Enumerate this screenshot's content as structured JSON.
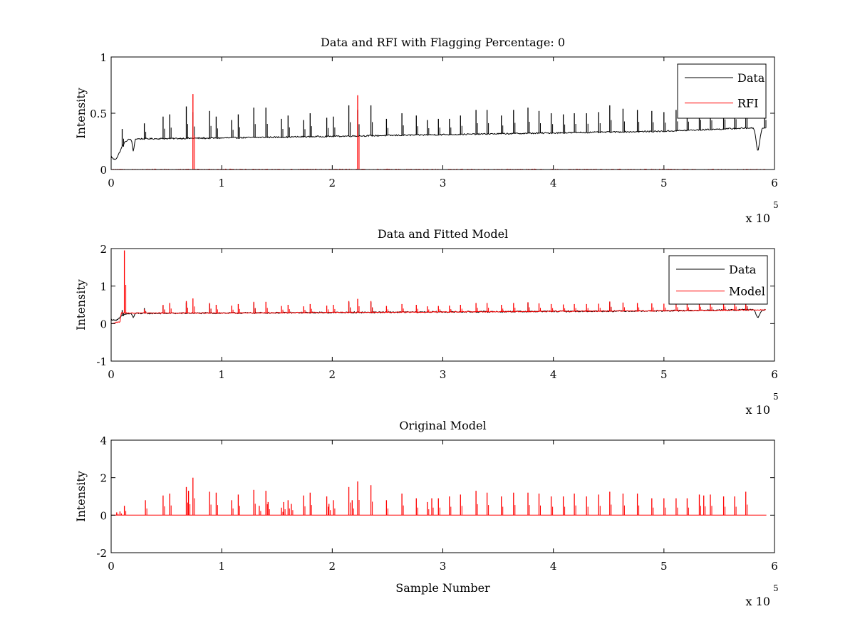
{
  "colors": {
    "data": "#000000",
    "rfi": "#ff0000",
    "background": "#ffffff",
    "axes": "#000000"
  },
  "chart_data": [
    {
      "type": "line",
      "title": "Data and RFI with Flagging Percentage: 0",
      "xlabel": "",
      "ylabel": "Intensity",
      "xlim": [
        0,
        600000
      ],
      "ylim": [
        0,
        1
      ],
      "xticks": [
        0,
        1,
        2,
        3,
        4,
        5,
        6
      ],
      "xtick_labels": [
        "0",
        "1",
        "2",
        "3",
        "4",
        "5",
        "6"
      ],
      "yticks": [
        0,
        0.5,
        1
      ],
      "ytick_labels": [
        "0",
        "0.5",
        "1"
      ],
      "x_multiplier_base": "x 10",
      "x_multiplier_exp": "5",
      "legend": {
        "position": "top-right",
        "entries": [
          "Data",
          "RFI"
        ]
      },
      "series": [
        {
          "name": "Data",
          "color": "#000000",
          "baseline": [
            [
              0,
              0.27
            ],
            [
              100000,
              0.28
            ],
            [
              300000,
              0.31
            ],
            [
              500000,
              0.34
            ],
            [
              580000,
              0.37
            ]
          ],
          "dips": [
            [
              3000,
              0.2,
              0.5
            ],
            [
              20000,
              0.12,
              0.08
            ],
            [
              585000,
              0.22,
              0.16
            ]
          ],
          "spikes": [
            [
              10000,
              0.36
            ],
            [
              30000,
              0.41
            ],
            [
              47000,
              0.47
            ],
            [
              53000,
              0.49
            ],
            [
              68000,
              0.56
            ],
            [
              74000,
              0.51
            ],
            [
              89000,
              0.52
            ],
            [
              95000,
              0.47
            ],
            [
              109000,
              0.44
            ],
            [
              115000,
              0.49
            ],
            [
              129000,
              0.55
            ],
            [
              140000,
              0.55
            ],
            [
              154000,
              0.45
            ],
            [
              160000,
              0.48
            ],
            [
              174000,
              0.44
            ],
            [
              180000,
              0.5
            ],
            [
              195000,
              0.46
            ],
            [
              201000,
              0.47
            ],
            [
              215000,
              0.57
            ],
            [
              223000,
              0.53
            ],
            [
              235000,
              0.57
            ],
            [
              249000,
              0.45
            ],
            [
              263000,
              0.5
            ],
            [
              276000,
              0.48
            ],
            [
              286000,
              0.44
            ],
            [
              296000,
              0.45
            ],
            [
              306000,
              0.45
            ],
            [
              316000,
              0.48
            ],
            [
              330000,
              0.53
            ],
            [
              340000,
              0.53
            ],
            [
              353000,
              0.48
            ],
            [
              364000,
              0.53
            ],
            [
              377000,
              0.55
            ],
            [
              387000,
              0.52
            ],
            [
              398000,
              0.5
            ],
            [
              409000,
              0.49
            ],
            [
              419000,
              0.5
            ],
            [
              430000,
              0.5
            ],
            [
              441000,
              0.51
            ],
            [
              451000,
              0.57
            ],
            [
              463000,
              0.54
            ],
            [
              476000,
              0.53
            ],
            [
              489000,
              0.52
            ],
            [
              500000,
              0.51
            ],
            [
              511000,
              0.53
            ],
            [
              521000,
              0.52
            ],
            [
              532000,
              0.55
            ],
            [
              542000,
              0.54
            ],
            [
              554000,
              0.55
            ],
            [
              564000,
              0.55
            ],
            [
              574000,
              0.57
            ],
            [
              591000,
              0.53
            ]
          ]
        },
        {
          "name": "RFI",
          "color": "#ff0000",
          "spikes": [
            [
              74000,
              0.67
            ],
            [
              223000,
              0.66
            ]
          ]
        }
      ]
    },
    {
      "type": "line",
      "title": "Data and Fitted Model",
      "xlabel": "",
      "ylabel": "Intensity",
      "xlim": [
        0,
        600000
      ],
      "ylim": [
        -1,
        2
      ],
      "xticks": [
        0,
        1,
        2,
        3,
        4,
        5,
        6
      ],
      "xtick_labels": [
        "0",
        "1",
        "2",
        "3",
        "4",
        "5",
        "6"
      ],
      "yticks": [
        -1,
        0,
        1,
        2
      ],
      "ytick_labels": [
        "-1",
        "0",
        "1",
        "2"
      ],
      "x_multiplier_base": "x 10",
      "x_multiplier_exp": "5",
      "legend": {
        "position": "top-right",
        "entries": [
          "Data",
          "Model"
        ]
      },
      "series": [
        {
          "name": "Data",
          "color": "#000000",
          "baseline": [
            [
              0,
              0.27
            ],
            [
              100000,
              0.28
            ],
            [
              300000,
              0.31
            ],
            [
              500000,
              0.34
            ],
            [
              580000,
              0.37
            ]
          ],
          "dips": [
            [
              3000,
              0.2,
              0.5
            ],
            [
              20000,
              0.12,
              0.08
            ],
            [
              585000,
              0.22,
              0.16
            ]
          ],
          "spikes": [
            [
              10000,
              0.36
            ],
            [
              30000,
              0.41
            ],
            [
              47000,
              0.47
            ],
            [
              68000,
              0.56
            ],
            [
              89000,
              0.52
            ],
            [
              129000,
              0.55
            ],
            [
              215000,
              0.57
            ],
            [
              235000,
              0.57
            ],
            [
              377000,
              0.55
            ],
            [
              451000,
              0.57
            ],
            [
              574000,
              0.57
            ]
          ]
        },
        {
          "name": "Model",
          "color": "#ff0000",
          "baseline": [
            [
              0,
              0.0
            ],
            [
              8000,
              0.05
            ],
            [
              9000,
              0.28
            ],
            [
              100000,
              0.28
            ],
            [
              300000,
              0.31
            ],
            [
              500000,
              0.34
            ],
            [
              600000,
              0.37
            ]
          ],
          "spikes": [
            [
              12000,
              1.95
            ],
            [
              30000,
              0.38
            ],
            [
              47000,
              0.5
            ],
            [
              53000,
              0.55
            ],
            [
              68000,
              0.6
            ],
            [
              74000,
              0.67
            ],
            [
              89000,
              0.55
            ],
            [
              95000,
              0.5
            ],
            [
              109000,
              0.48
            ],
            [
              115000,
              0.52
            ],
            [
              129000,
              0.58
            ],
            [
              140000,
              0.58
            ],
            [
              154000,
              0.47
            ],
            [
              160000,
              0.5
            ],
            [
              174000,
              0.46
            ],
            [
              180000,
              0.52
            ],
            [
              195000,
              0.48
            ],
            [
              201000,
              0.5
            ],
            [
              215000,
              0.6
            ],
            [
              223000,
              0.66
            ],
            [
              235000,
              0.6
            ],
            [
              249000,
              0.47
            ],
            [
              263000,
              0.52
            ],
            [
              276000,
              0.5
            ],
            [
              286000,
              0.46
            ],
            [
              296000,
              0.47
            ],
            [
              306000,
              0.48
            ],
            [
              316000,
              0.5
            ],
            [
              330000,
              0.55
            ],
            [
              340000,
              0.55
            ],
            [
              353000,
              0.5
            ],
            [
              364000,
              0.55
            ],
            [
              377000,
              0.57
            ],
            [
              387000,
              0.54
            ],
            [
              398000,
              0.52
            ],
            [
              409000,
              0.51
            ],
            [
              419000,
              0.52
            ],
            [
              430000,
              0.52
            ],
            [
              441000,
              0.53
            ],
            [
              451000,
              0.59
            ],
            [
              463000,
              0.56
            ],
            [
              476000,
              0.55
            ],
            [
              489000,
              0.54
            ],
            [
              500000,
              0.53
            ],
            [
              511000,
              0.55
            ],
            [
              521000,
              0.54
            ],
            [
              532000,
              0.57
            ],
            [
              542000,
              0.56
            ],
            [
              554000,
              0.57
            ],
            [
              564000,
              0.57
            ],
            [
              574000,
              0.59
            ]
          ]
        }
      ]
    },
    {
      "type": "line",
      "title": "Original Model",
      "xlabel": "Sample Number",
      "ylabel": "Intensity",
      "xlim": [
        0,
        600000
      ],
      "ylim": [
        -2,
        4
      ],
      "xticks": [
        0,
        1,
        2,
        3,
        4,
        5,
        6
      ],
      "xtick_labels": [
        "0",
        "1",
        "2",
        "3",
        "4",
        "5",
        "6"
      ],
      "yticks": [
        -2,
        0,
        2,
        4
      ],
      "ytick_labels": [
        "-2",
        "0",
        "2",
        "4"
      ],
      "x_multiplier_base": "x 10",
      "x_multiplier_exp": "5",
      "series": [
        {
          "color": "#ff0000",
          "baseline": [
            [
              0,
              0
            ],
            [
              600000,
              0
            ]
          ],
          "spikes": [
            [
              5000,
              0.15
            ],
            [
              8000,
              0.2
            ],
            [
              12000,
              0.5
            ],
            [
              31000,
              0.8
            ],
            [
              47000,
              1.05
            ],
            [
              53000,
              1.15
            ],
            [
              68000,
              1.5
            ],
            [
              70000,
              1.3
            ],
            [
              74000,
              2.0
            ],
            [
              89000,
              1.25
            ],
            [
              95000,
              1.2
            ],
            [
              109000,
              0.8
            ],
            [
              115000,
              1.1
            ],
            [
              129000,
              1.35
            ],
            [
              134000,
              0.5
            ],
            [
              140000,
              1.3
            ],
            [
              142000,
              0.7
            ],
            [
              154000,
              0.4
            ],
            [
              156000,
              0.7
            ],
            [
              160000,
              0.8
            ],
            [
              163000,
              0.6
            ],
            [
              174000,
              1.05
            ],
            [
              180000,
              1.2
            ],
            [
              195000,
              1.0
            ],
            [
              197000,
              0.6
            ],
            [
              201000,
              0.8
            ],
            [
              215000,
              1.5
            ],
            [
              218000,
              0.8
            ],
            [
              223000,
              1.8
            ],
            [
              235000,
              1.6
            ],
            [
              249000,
              0.8
            ],
            [
              263000,
              1.15
            ],
            [
              276000,
              0.9
            ],
            [
              286000,
              0.7
            ],
            [
              290000,
              0.9
            ],
            [
              296000,
              0.9
            ],
            [
              306000,
              1.0
            ],
            [
              316000,
              1.1
            ],
            [
              330000,
              1.3
            ],
            [
              340000,
              1.2
            ],
            [
              353000,
              1.0
            ],
            [
              364000,
              1.2
            ],
            [
              377000,
              1.2
            ],
            [
              387000,
              1.15
            ],
            [
              398000,
              1.0
            ],
            [
              409000,
              1.0
            ],
            [
              419000,
              1.15
            ],
            [
              430000,
              1.0
            ],
            [
              441000,
              1.1
            ],
            [
              451000,
              1.25
            ],
            [
              463000,
              1.15
            ],
            [
              476000,
              1.15
            ],
            [
              489000,
              0.9
            ],
            [
              500000,
              0.9
            ],
            [
              511000,
              0.9
            ],
            [
              521000,
              0.9
            ],
            [
              532000,
              1.1
            ],
            [
              536000,
              1.05
            ],
            [
              542000,
              1.1
            ],
            [
              554000,
              1.0
            ],
            [
              564000,
              1.0
            ],
            [
              574000,
              1.25
            ]
          ]
        }
      ]
    }
  ]
}
